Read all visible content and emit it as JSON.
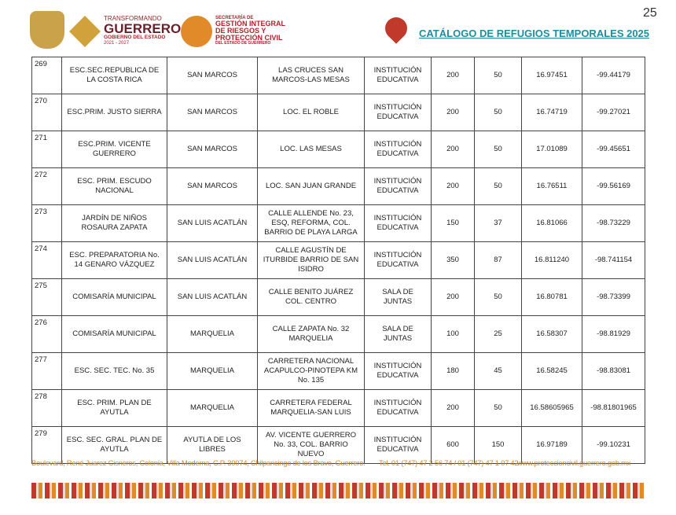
{
  "header": {
    "logo1": {
      "line1": "TRANSFORMANDO",
      "line2": "GUERRERO",
      "line3": "GOBIERNO DEL ESTADO",
      "line4": "2021 - 2027"
    },
    "logo2": {
      "line1": "SECRETARÍA DE",
      "line2": "GESTIÓN INTEGRAL",
      "line3": "DE RIESGOS Y",
      "line4": "PROTECCIÓN CIVIL",
      "line5": "DEL ESTADO DE GUERRERO"
    },
    "title": "CATÁLOGO DE REFUGIOS TEMPORALES 2025",
    "page_number": "25"
  },
  "table": {
    "rows": [
      [
        "269",
        "ESC.SEC.REPUBLICA DE LA COSTA RICA",
        "SAN MARCOS",
        "LAS CRUCES SAN MARCOS-LAS MESAS",
        "INSTITUCIÓN EDUCATIVA",
        "200",
        "50",
        "16.97451",
        "-99.44179"
      ],
      [
        "270",
        "ESC.PRIM. JUSTO SIERRA",
        "SAN MARCOS",
        "LOC. EL ROBLE",
        "INSTITUCIÓN EDUCATIVA",
        "200",
        "50",
        "16.74719",
        "-99.27021"
      ],
      [
        "271",
        "ESC.PRIM. VICENTE GUERRERO",
        "SAN MARCOS",
        "LOC. LAS MESAS",
        "INSTITUCIÓN EDUCATIVA",
        "200",
        "50",
        "17.01089",
        "-99.45651"
      ],
      [
        "272",
        "ESC. PRIM. ESCUDO NACIONAL",
        "SAN MARCOS",
        "LOC. SAN JUAN GRANDE",
        "INSTITUCIÓN EDUCATIVA",
        "200",
        "50",
        "16.76511",
        "-99.56169"
      ],
      [
        "273",
        "JARDÍN DE NIÑOS ROSAURA ZAPATA",
        "SAN LUIS ACATLÁN",
        "CALLE ALLENDE No. 23, ESQ, REFORMA, COL. BARRIO DE PLAYA LARGA",
        "INSTITUCIÓN EDUCATIVA",
        "150",
        "37",
        "16.81066",
        "-98.73229"
      ],
      [
        "274",
        "ESC. PREPARATORIA No. 14 GENARO VÁZQUEZ",
        "SAN LUIS ACATLÁN",
        "CALLE AGUSTÍN DE ITURBIDE BARRIO DE SAN ISIDRO",
        "INSTITUCIÓN EDUCATIVA",
        "350",
        "87",
        "16.811240",
        "-98.741154"
      ],
      [
        "275",
        "COMISARÍA MUNICIPAL",
        "SAN LUIS ACATLÁN",
        "CALLE BENITO JUÁREZ COL. CENTRO",
        "SALA DE JUNTAS",
        "200",
        "50",
        "16.80781",
        "-98.73399"
      ],
      [
        "276",
        "COMISARÍA MUNICIPAL",
        "MARQUELIA",
        "CALLE ZAPATA No. 32 MARQUELIA",
        "SALA DE JUNTAS",
        "100",
        "25",
        "16.58307",
        "-98.81929"
      ],
      [
        "277",
        "ESC. SEC. TEC. No. 35",
        "MARQUELIA",
        "CARRETERA NACIONAL ACAPULCO-PINOTEPA KM No. 135",
        "INSTITUCIÓN EDUCATIVA",
        "180",
        "45",
        "16.58245",
        "-98.83081"
      ],
      [
        "278",
        "ESC. PRIM. PLAN DE AYUTLA",
        "MARQUELIA",
        "CARRETERA FEDERAL MARQUELIA-SAN LUIS",
        "INSTITUCIÓN EDUCATIVA",
        "200",
        "50",
        "16.58605965",
        "-98.81801965"
      ],
      [
        "279",
        "ESC. SEC. GRAL. PLAN DE AYUTLA",
        "AYUTLA DE LOS LIBRES",
        "AV. VICENTE GUERRERO No. 33, COL. BARRIO NUEVO",
        "INSTITUCIÓN EDUCATIVA",
        "600",
        "150",
        "16.97189",
        "-99.10231"
      ]
    ]
  },
  "footer": {
    "address": "Boulevard, René Juarez Cisneros, Colonia, Villa Moderna, C.P. 39074, Chilpancingo de los Bravo, Guerrero.",
    "phone": "Tel. 01 (747) 47 2 56 74 / 01 (747) 47 1 07 42",
    "web": "www.proteccioncivil.guerrero.gob.mx"
  }
}
